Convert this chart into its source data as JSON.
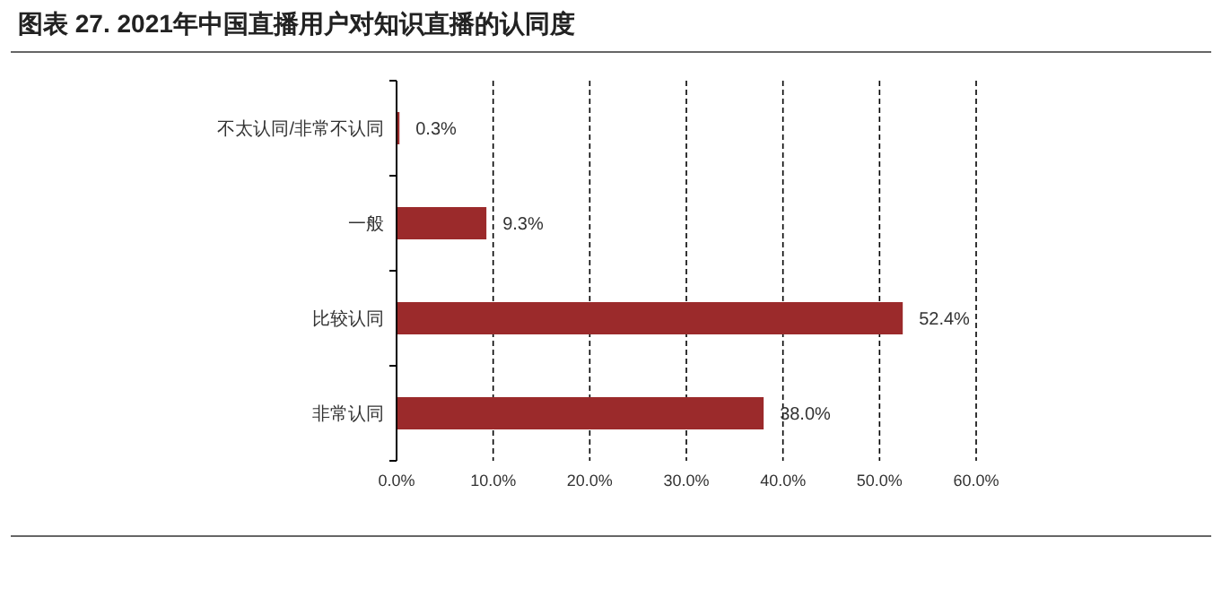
{
  "chart_data": {
    "type": "bar",
    "orientation": "horizontal",
    "title": "图表 27. 2021年中国直播用户对知识直播的认同度",
    "categories": [
      "不太认同/非常不认同",
      "一般",
      "比较认同",
      "非常认同"
    ],
    "values": [
      0.3,
      9.3,
      52.4,
      38.0
    ],
    "value_labels": [
      "0.3%",
      "9.3%",
      "52.4%",
      "38.0%"
    ],
    "color": "#9b2a2b",
    "xlim": [
      0,
      60
    ],
    "xticks": [
      {
        "value": 0,
        "label": "0.0%"
      },
      {
        "value": 10,
        "label": "10.0%"
      },
      {
        "value": 20,
        "label": "20.0%"
      },
      {
        "value": 30,
        "label": "30.0%"
      },
      {
        "value": 40,
        "label": "40.0%"
      },
      {
        "value": 50,
        "label": "50.0%"
      },
      {
        "value": 60,
        "label": "60.0%"
      }
    ],
    "grid": "x"
  }
}
